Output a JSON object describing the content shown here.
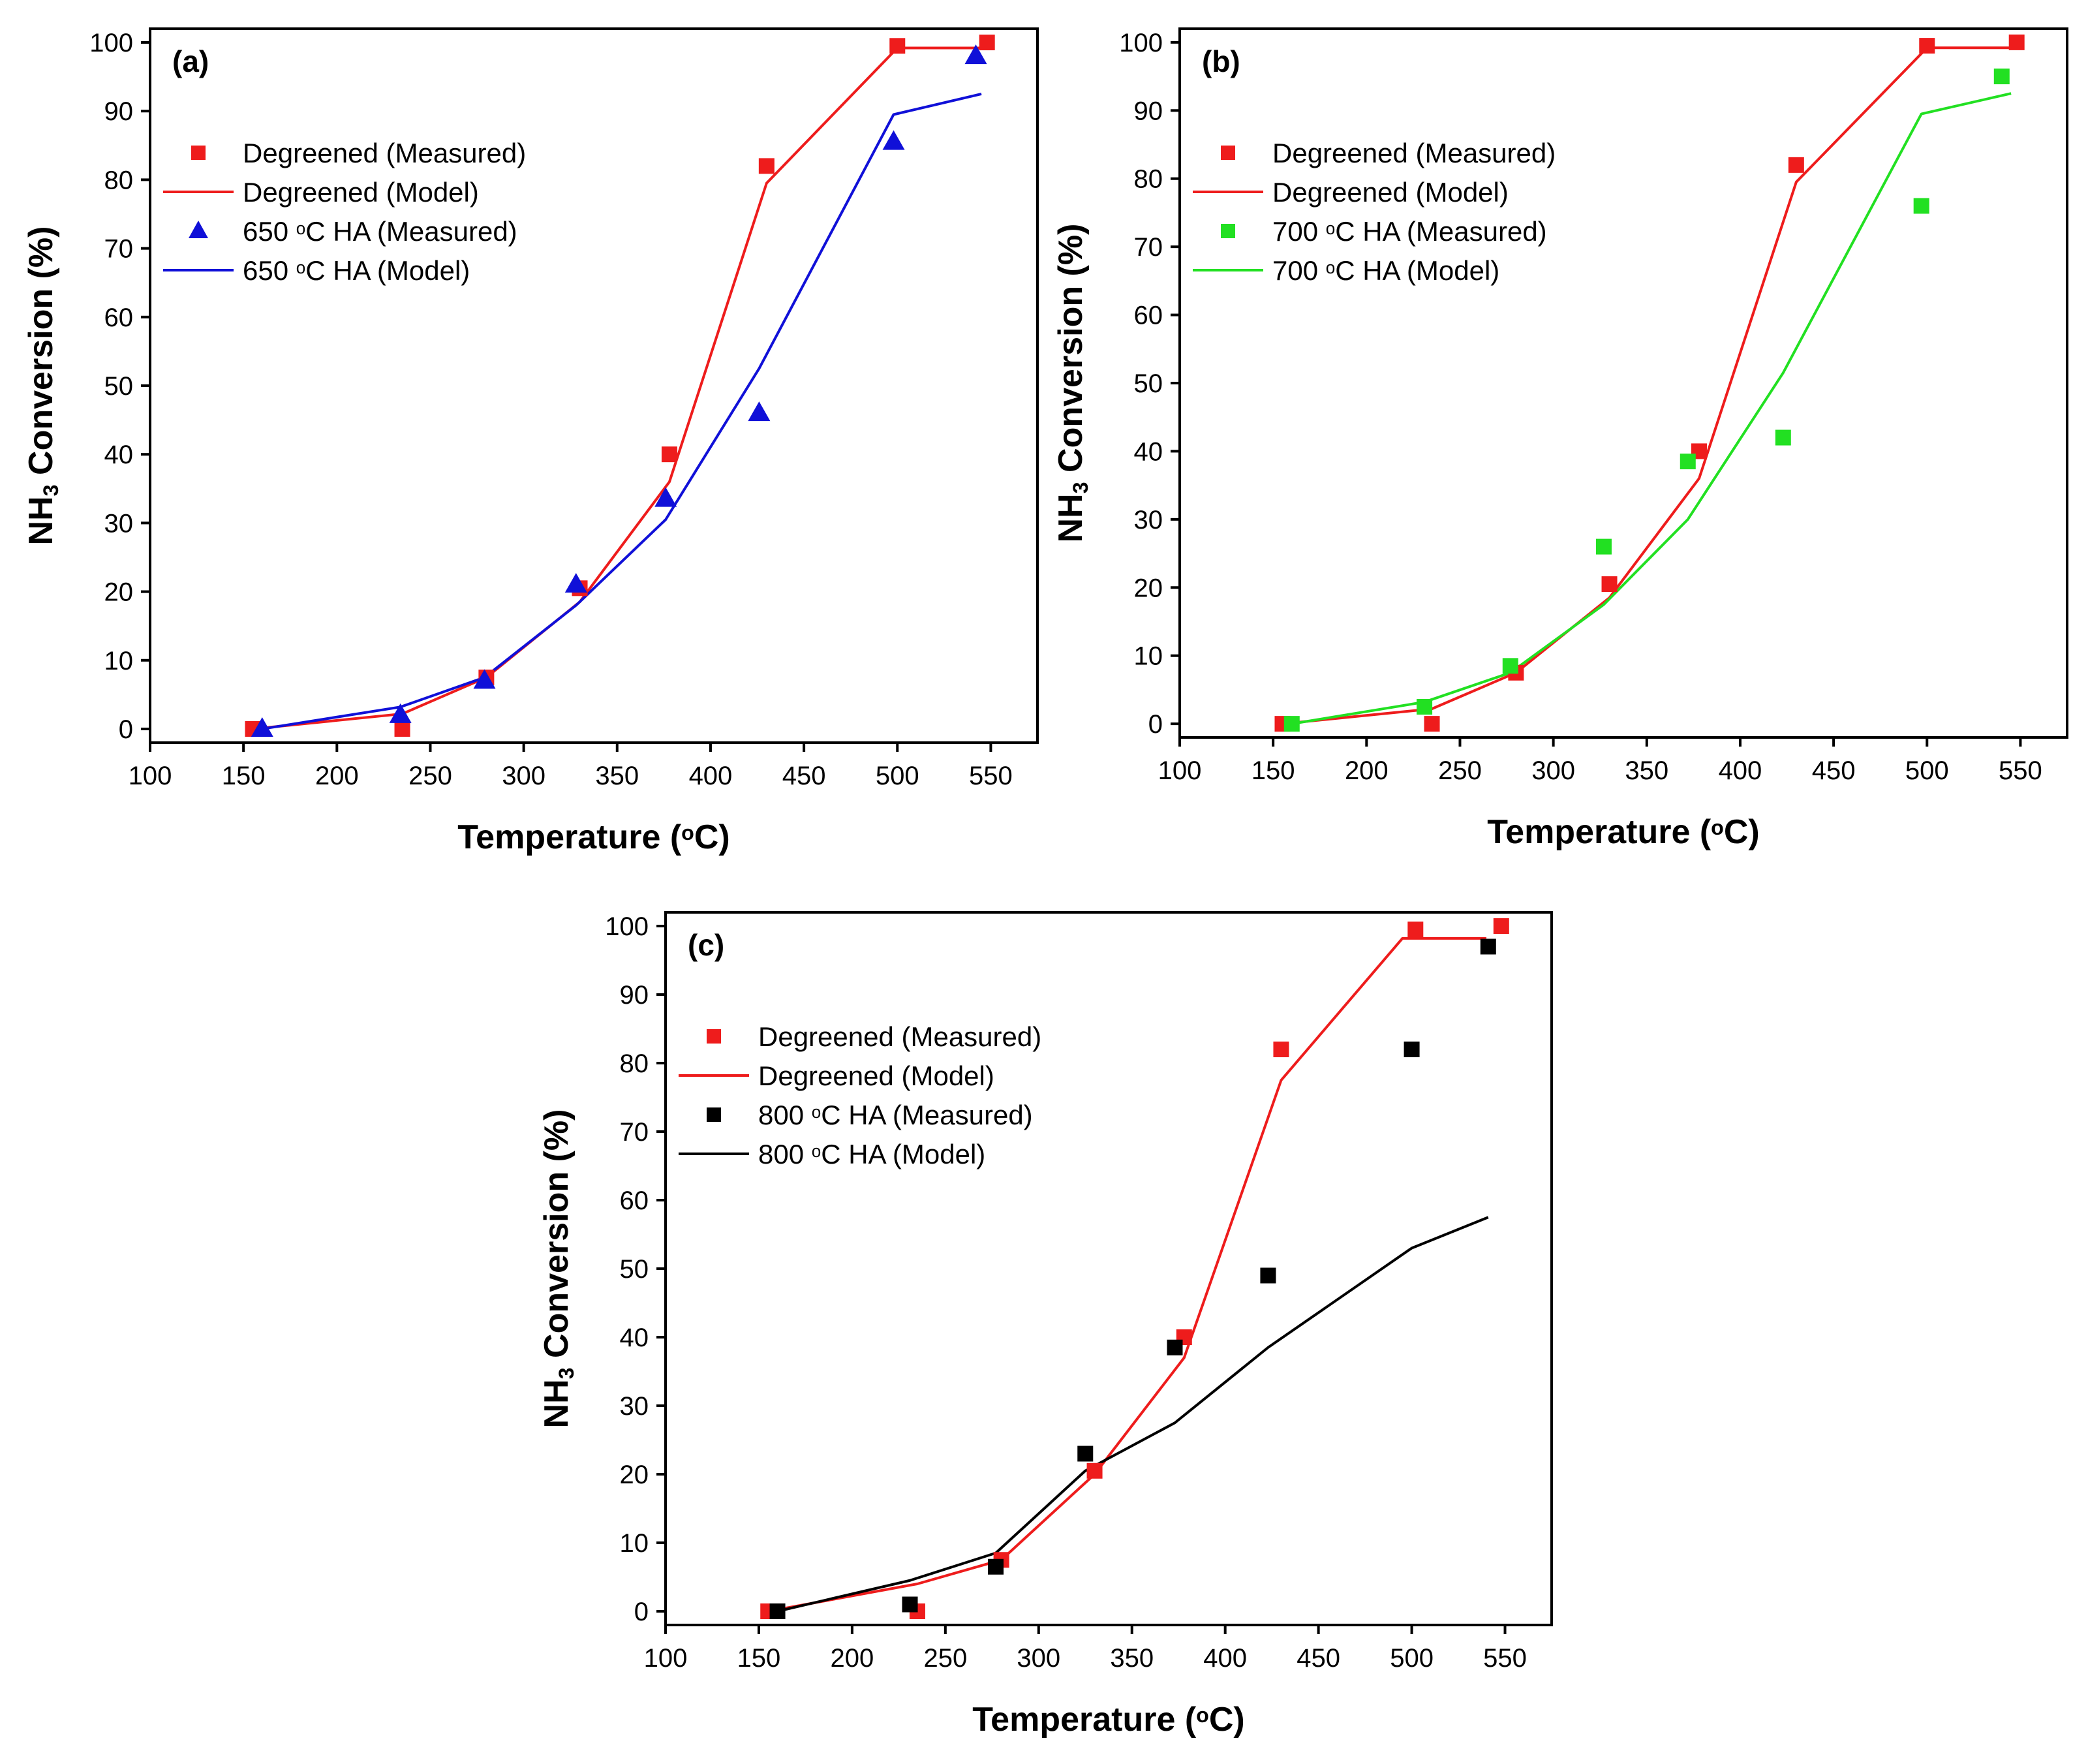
{
  "colors": {
    "degreened": "#ee1c1c",
    "ha650": "#1010d8",
    "ha700": "#22e022",
    "ha800": "#000000"
  },
  "chart_data": [
    {
      "id": "a",
      "type": "scatter+line",
      "panel_label": "(a)",
      "xlabel": "Temperature (°C)",
      "ylabel": "NH3 Conversion (%)",
      "xlim": [
        100,
        575
      ],
      "ylim": [
        -2,
        102
      ],
      "xticks": [
        100,
        150,
        200,
        250,
        300,
        350,
        400,
        450,
        500,
        550
      ],
      "yticks": [
        0,
        10,
        20,
        30,
        40,
        50,
        60,
        70,
        80,
        90,
        100
      ],
      "legend_position": "upper-left",
      "series": [
        {
          "name": "Degreened (Measured)",
          "kind": "scatter",
          "marker": "square",
          "color": "#ee1c1c",
          "x": [
            155,
            235,
            280,
            330,
            378,
            430,
            500,
            548
          ],
          "y": [
            0,
            0,
            7.5,
            20.5,
            40,
            82,
            99.5,
            100
          ]
        },
        {
          "name": "Degreened (Model)",
          "kind": "line",
          "color": "#ee1c1c",
          "x": [
            155,
            235,
            280,
            330,
            378,
            430,
            500,
            548
          ],
          "y": [
            0,
            2.2,
            7.5,
            18.5,
            36,
            79.5,
            99.2,
            99.2
          ]
        },
        {
          "name": "650 °C HA (Measured)",
          "kind": "scatter",
          "marker": "triangle",
          "color": "#1010d8",
          "x": [
            160,
            234,
            279,
            328,
            376,
            426,
            498,
            542
          ],
          "y": [
            0,
            2,
            7,
            21,
            33.5,
            46,
            85.5,
            98
          ]
        },
        {
          "name": "650 °C HA (Model)",
          "kind": "line",
          "color": "#1010d8",
          "x": [
            160,
            234,
            279,
            328,
            376,
            426,
            498,
            545
          ],
          "y": [
            0,
            3.2,
            7.5,
            18,
            30.5,
            52.5,
            89.5,
            92.5
          ]
        }
      ]
    },
    {
      "id": "b",
      "type": "scatter+line",
      "panel_label": "(b)",
      "xlabel": "Temperature (°C)",
      "ylabel": "NH3 Conversion (%)",
      "xlim": [
        100,
        575
      ],
      "ylim": [
        -2,
        102
      ],
      "xticks": [
        100,
        150,
        200,
        250,
        300,
        350,
        400,
        450,
        500,
        550
      ],
      "yticks": [
        0,
        10,
        20,
        30,
        40,
        50,
        60,
        70,
        80,
        90,
        100
      ],
      "legend_position": "upper-left",
      "series": [
        {
          "name": "Degreened (Measured)",
          "kind": "scatter",
          "marker": "square",
          "color": "#ee1c1c",
          "x": [
            155,
            235,
            280,
            330,
            378,
            430,
            500,
            548
          ],
          "y": [
            0,
            0,
            7.5,
            20.5,
            40,
            82,
            99.5,
            100
          ]
        },
        {
          "name": "Degreened (Model)",
          "kind": "line",
          "color": "#ee1c1c",
          "x": [
            155,
            235,
            280,
            330,
            378,
            430,
            500,
            548
          ],
          "y": [
            0,
            2.2,
            7.5,
            18.5,
            36,
            79.5,
            99.2,
            99.2
          ]
        },
        {
          "name": "700 °C HA (Measured)",
          "kind": "scatter",
          "marker": "square",
          "color": "#22e022",
          "x": [
            160,
            231,
            277,
            327,
            372,
            423,
            497,
            540
          ],
          "y": [
            0,
            2.5,
            8.5,
            26,
            38.5,
            42,
            76,
            95
          ]
        },
        {
          "name": "700 °C HA (Model)",
          "kind": "line",
          "color": "#22e022",
          "x": [
            160,
            231,
            277,
            327,
            372,
            423,
            497,
            545
          ],
          "y": [
            0,
            3.2,
            7.5,
            17.5,
            30,
            51.5,
            89.5,
            92.5
          ]
        }
      ]
    },
    {
      "id": "c",
      "type": "scatter+line",
      "panel_label": "(c)",
      "xlabel": "Temperature (°C)",
      "ylabel": "NH3 Conversion (%)",
      "xlim": [
        100,
        575
      ],
      "ylim": [
        -2,
        102
      ],
      "xticks": [
        100,
        150,
        200,
        250,
        300,
        350,
        400,
        450,
        500,
        550
      ],
      "yticks": [
        0,
        10,
        20,
        30,
        40,
        50,
        60,
        70,
        80,
        90,
        100
      ],
      "legend_position": "upper-left",
      "series": [
        {
          "name": "Degreened (Measured)",
          "kind": "scatter",
          "marker": "square",
          "color": "#ee1c1c",
          "x": [
            155,
            235,
            280,
            330,
            378,
            430,
            502,
            548
          ],
          "y": [
            0,
            0,
            7.5,
            20.5,
            40,
            82,
            99.5,
            100
          ]
        },
        {
          "name": "Degreened (Model)",
          "kind": "line",
          "color": "#ee1c1c",
          "x": [
            155,
            235,
            280,
            330,
            378,
            430,
            495,
            540
          ],
          "y": [
            0,
            4,
            7.5,
            20,
            37,
            77.5,
            98.2,
            98.2
          ]
        },
        {
          "name": "800 °C HA (Measured)",
          "kind": "scatter",
          "marker": "square",
          "color": "#000000",
          "x": [
            160,
            231,
            277,
            325,
            373,
            423,
            500,
            541
          ],
          "y": [
            0,
            1,
            6.5,
            23,
            38.5,
            49,
            82,
            97
          ]
        },
        {
          "name": "800 °C HA (Model)",
          "kind": "line",
          "color": "#000000",
          "x": [
            160,
            231,
            277,
            325,
            373,
            423,
            500,
            541
          ],
          "y": [
            0,
            4.5,
            8.5,
            20.5,
            27.5,
            38.5,
            53,
            57.5
          ]
        }
      ]
    }
  ]
}
